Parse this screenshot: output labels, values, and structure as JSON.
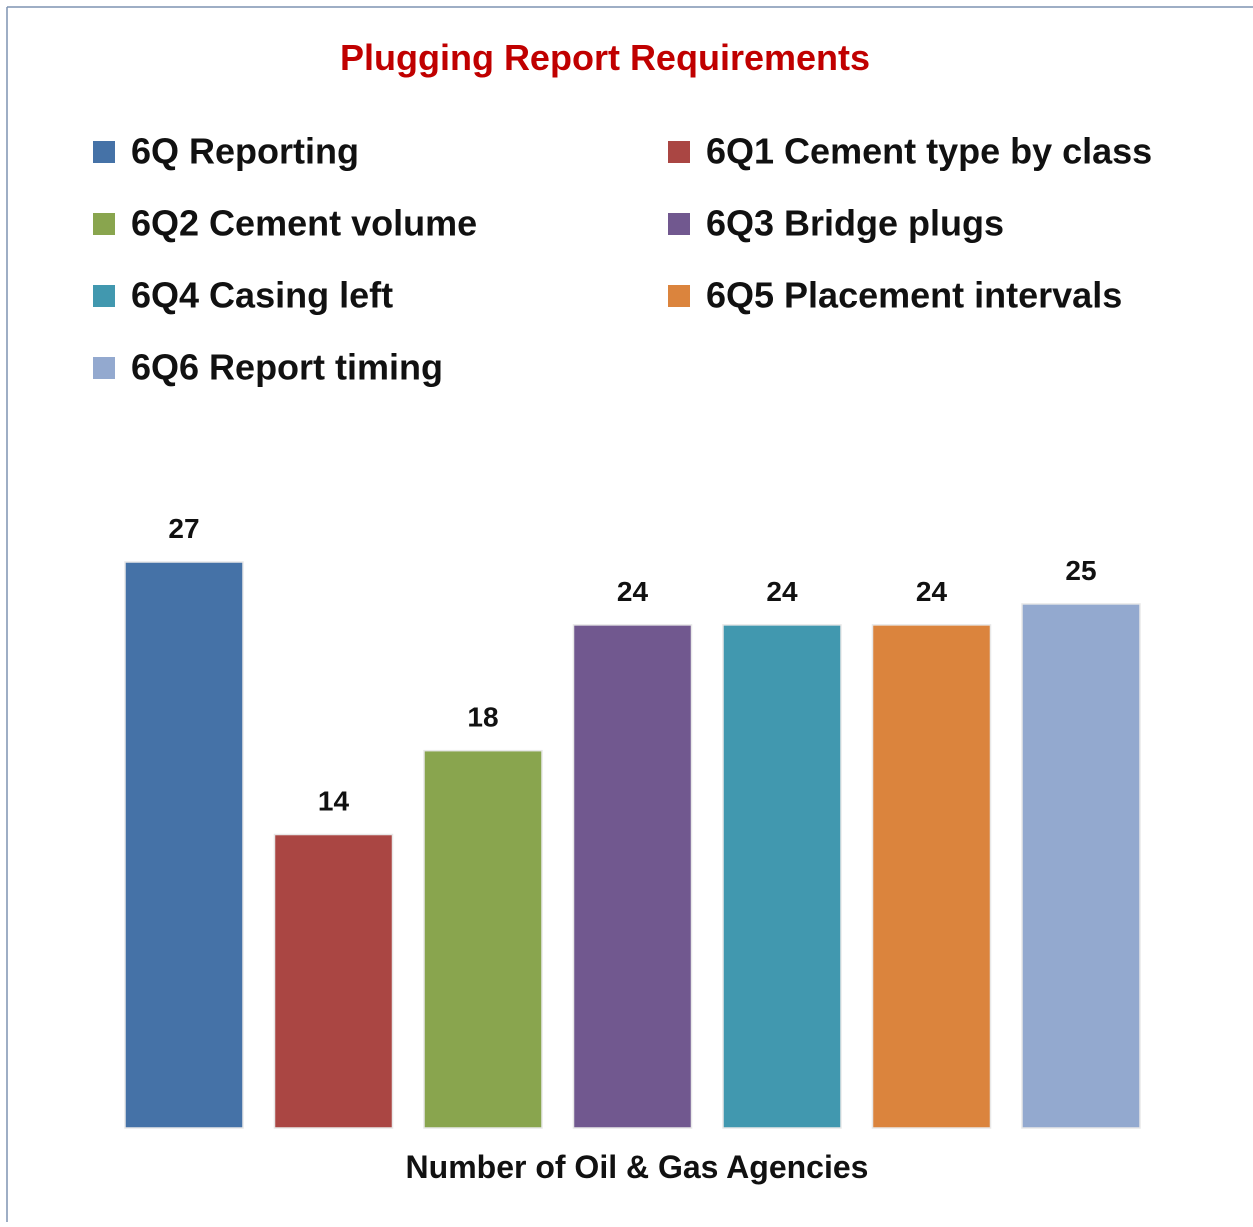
{
  "chart_data": {
    "type": "bar",
    "title": "Plugging Report Requirements",
    "x_label": "Number of Oil & Gas Agencies",
    "series": [
      {
        "name": "6Q Reporting",
        "color": "#4572a7",
        "values": [
          27
        ]
      },
      {
        "name": "6Q1 Cement type by class",
        "color": "#aa4643",
        "values": [
          14
        ]
      },
      {
        "name": "6Q2 Cement volume",
        "color": "#89a54e",
        "values": [
          18
        ]
      },
      {
        "name": "6Q3 Bridge plugs",
        "color": "#71588f",
        "values": [
          24
        ]
      },
      {
        "name": "6Q4 Casing left",
        "color": "#4198af",
        "values": [
          24
        ]
      },
      {
        "name": "6Q5 Placement intervals",
        "color": "#db843d",
        "values": [
          24
        ]
      },
      {
        "name": "6Q6 Report timing",
        "color": "#93a9cf",
        "values": [
          25
        ]
      }
    ]
  }
}
